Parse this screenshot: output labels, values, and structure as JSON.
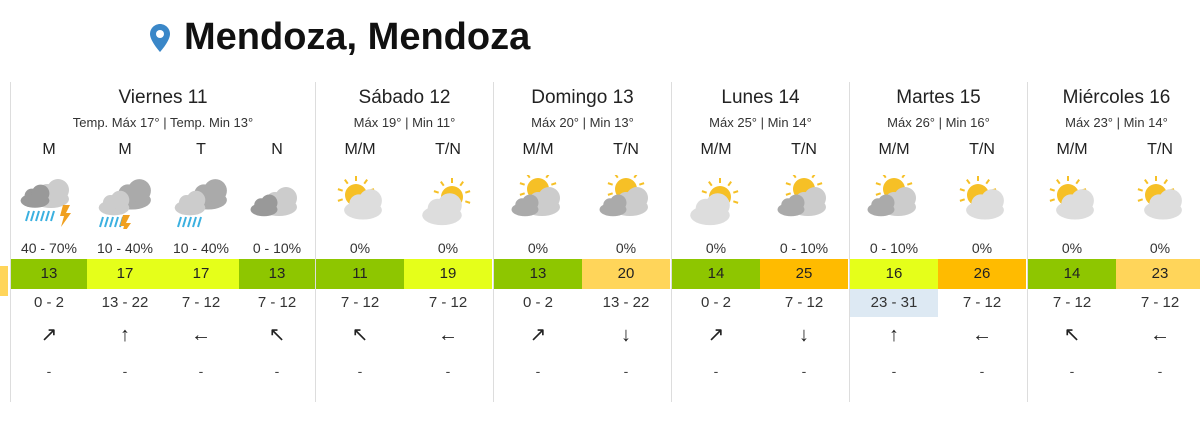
{
  "location": {
    "title": "Mendoza, Mendoza",
    "icon": "map-pin-icon",
    "color": "#3a87c8"
  },
  "temp_colors": {
    "cool": "#8ec600",
    "mild": "#e5ff1a",
    "warm": "#ffd55a",
    "hot": "#ffbb00"
  },
  "days": [
    {
      "name": "Viernes 11",
      "maxmin": "Temp. Máx 17° | Temp. Min 13°",
      "periods": [
        {
          "label": "M",
          "icon": "storm-rain-icon",
          "precip": "40 - 70%",
          "temp": "13",
          "tc": "cool",
          "wind": "0 - 2",
          "arrow": "↗"
        },
        {
          "label": "M",
          "icon": "cloud-rain-storm-icon",
          "precip": "10 - 40%",
          "temp": "17",
          "tc": "mild",
          "wind": "13 - 22",
          "arrow": "↑"
        },
        {
          "label": "T",
          "icon": "cloud-rain-icon",
          "precip": "10 - 40%",
          "temp": "17",
          "tc": "mild",
          "wind": "7 - 12",
          "arrow": "←"
        },
        {
          "label": "N",
          "icon": "cloudy-night-icon",
          "precip": "0 - 10%",
          "temp": "13",
          "tc": "cool",
          "wind": "7 - 12",
          "arrow": "↖"
        }
      ]
    },
    {
      "name": "Sábado 12",
      "maxmin": "Máx 19° | Min 11°",
      "periods": [
        {
          "label": "M/M",
          "icon": "partly-sunny-icon",
          "precip": "0%",
          "temp": "11",
          "tc": "cool",
          "wind": "7 - 12",
          "arrow": "↖"
        },
        {
          "label": "T/N",
          "icon": "sun-cloud-icon",
          "precip": "0%",
          "temp": "19",
          "tc": "mild",
          "wind": "7 - 12",
          "arrow": "←"
        }
      ]
    },
    {
      "name": "Domingo 13",
      "maxmin": "Máx 20° | Min 13°",
      "periods": [
        {
          "label": "M/M",
          "icon": "cloudy-icon",
          "precip": "0%",
          "temp": "13",
          "tc": "cool",
          "wind": "0 - 2",
          "arrow": "↗"
        },
        {
          "label": "T/N",
          "icon": "cloudy-icon",
          "precip": "0%",
          "temp": "20",
          "tc": "warm",
          "wind": "13 - 22",
          "arrow": "↓"
        }
      ]
    },
    {
      "name": "Lunes 14",
      "maxmin": "Máx 25° | Min 14°",
      "periods": [
        {
          "label": "M/M",
          "icon": "sun-cloud-icon",
          "precip": "0%",
          "temp": "14",
          "tc": "cool",
          "wind": "0 - 2",
          "arrow": "↗"
        },
        {
          "label": "T/N",
          "icon": "cloudy-icon",
          "precip": "0 - 10%",
          "temp": "25",
          "tc": "hot",
          "wind": "7 - 12",
          "arrow": "↓"
        }
      ]
    },
    {
      "name": "Martes 15",
      "maxmin": "Máx 26° | Min 16°",
      "periods": [
        {
          "label": "M/M",
          "icon": "cloudy-icon",
          "precip": "0 - 10%",
          "temp": "16",
          "tc": "mild",
          "wind": "23 - 31",
          "wind_highlight": true,
          "arrow": "↑"
        },
        {
          "label": "T/N",
          "icon": "partly-sunny-icon",
          "precip": "0%",
          "temp": "26",
          "tc": "hot",
          "wind": "7 - 12",
          "arrow": "←"
        }
      ]
    },
    {
      "name": "Miércoles 16",
      "maxmin": "Máx 23° | Min 14°",
      "periods": [
        {
          "label": "M/M",
          "icon": "partly-sunny-icon",
          "precip": "0%",
          "temp": "14",
          "tc": "cool",
          "wind": "7 - 12",
          "arrow": "↖"
        },
        {
          "label": "T/N",
          "icon": "partly-sunny-icon",
          "precip": "0%",
          "temp": "23",
          "tc": "warm",
          "wind": "7 - 12",
          "arrow": "←"
        }
      ]
    }
  ],
  "empty": "-"
}
